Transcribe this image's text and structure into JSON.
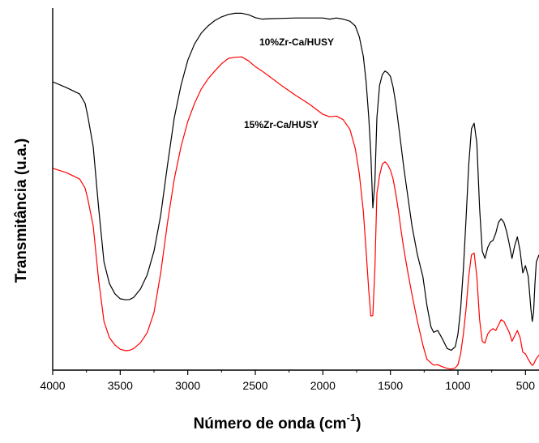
{
  "chart_data": {
    "type": "line",
    "xlabel": "Número de onda (cm",
    "xlabel_sup": "-1",
    "xlabel_close": ")",
    "ylabel": "Transmitância (u.a.)",
    "x_reversed": true,
    "xlim": [
      4000,
      400
    ],
    "ylim": [
      0,
      100
    ],
    "x_ticks": [
      4000,
      3500,
      3000,
      2500,
      2000,
      1500,
      1000,
      500
    ],
    "x_tick_labels": [
      "4000",
      "3500",
      "3000",
      "2500",
      "2000",
      "1500",
      "1000",
      "500"
    ],
    "y_ticks_shown": false,
    "grid": false,
    "series": [
      {
        "name": "10%Zr-Ca/HUSY",
        "color": "#000000",
        "x": [
          4000,
          3900,
          3800,
          3760,
          3740,
          3700,
          3660,
          3620,
          3580,
          3540,
          3500,
          3460,
          3430,
          3400,
          3350,
          3300,
          3250,
          3200,
          3150,
          3100,
          3050,
          3000,
          2950,
          2900,
          2850,
          2800,
          2750,
          2700,
          2650,
          2600,
          2550,
          2500,
          2450,
          2400,
          2300,
          2200,
          2100,
          2000,
          1950,
          1900,
          1850,
          1800,
          1760,
          1730,
          1700,
          1680,
          1660,
          1645,
          1630,
          1615,
          1600,
          1580,
          1560,
          1540,
          1520,
          1500,
          1480,
          1460,
          1440,
          1420,
          1400,
          1370,
          1340,
          1300,
          1260,
          1230,
          1200,
          1180,
          1150,
          1120,
          1080,
          1050,
          1020,
          1000,
          980,
          960,
          940,
          920,
          900,
          880,
          860,
          840,
          820,
          800,
          780,
          760,
          740,
          720,
          700,
          680,
          660,
          640,
          620,
          600,
          580,
          560,
          540,
          520,
          500,
          480,
          460,
          450,
          440,
          430,
          420,
          400
        ],
        "y": [
          80.0,
          78.4,
          76.6,
          74.0,
          70.5,
          62.0,
          45.0,
          30.0,
          24.0,
          21.2,
          19.8,
          19.5,
          19.6,
          20.2,
          22.5,
          26.5,
          33.0,
          43.0,
          57.0,
          70.0,
          79.0,
          86.0,
          90.5,
          93.5,
          95.5,
          97.0,
          98.0,
          98.7,
          99.0,
          99.0,
          98.6,
          97.8,
          97.4,
          97.5,
          97.6,
          97.7,
          97.7,
          97.7,
          97.4,
          97.7,
          97.4,
          96.8,
          95.5,
          92.5,
          87.0,
          80.0,
          70.0,
          60.0,
          45.0,
          52.0,
          70.0,
          79.0,
          82.0,
          83.0,
          82.5,
          81.5,
          78.5,
          74.0,
          68.0,
          62.0,
          56.0,
          48.0,
          40.0,
          32.0,
          26.0,
          18.0,
          12.0,
          10.5,
          11.0,
          9.0,
          6.0,
          5.5,
          6.5,
          10.0,
          17.0,
          28.0,
          42.0,
          57.0,
          67.0,
          68.5,
          63.0,
          45.0,
          33.0,
          31.0,
          34.0,
          35.5,
          36.0,
          38.0,
          41.0,
          42.0,
          41.0,
          38.5,
          35.0,
          31.0,
          34.5,
          37.0,
          33.0,
          27.0,
          29.0,
          26.0,
          17.0,
          13.5,
          16.0,
          24.0,
          30.0,
          32.0
        ]
      },
      {
        "name": "15%Zr-Ca/HUSY",
        "color": "#ff0000",
        "x": [
          4000,
          3900,
          3800,
          3760,
          3740,
          3700,
          3660,
          3620,
          3580,
          3540,
          3500,
          3460,
          3430,
          3400,
          3350,
          3300,
          3250,
          3200,
          3150,
          3100,
          3050,
          3000,
          2950,
          2900,
          2850,
          2800,
          2750,
          2700,
          2650,
          2600,
          2550,
          2500,
          2450,
          2400,
          2300,
          2200,
          2100,
          2000,
          1950,
          1900,
          1850,
          1800,
          1760,
          1730,
          1700,
          1680,
          1660,
          1645,
          1630,
          1615,
          1600,
          1580,
          1560,
          1540,
          1520,
          1500,
          1480,
          1460,
          1440,
          1420,
          1400,
          1370,
          1340,
          1300,
          1260,
          1230,
          1200,
          1180,
          1150,
          1120,
          1080,
          1050,
          1020,
          1000,
          980,
          960,
          940,
          920,
          900,
          880,
          860,
          840,
          820,
          800,
          780,
          760,
          740,
          720,
          700,
          680,
          660,
          640,
          620,
          600,
          580,
          560,
          540,
          520,
          500,
          480,
          460,
          450,
          440,
          430,
          420,
          400
        ],
        "y": [
          56.0,
          54.8,
          53.0,
          50.5,
          47.5,
          40.0,
          25.0,
          13.5,
          9.0,
          7.0,
          5.8,
          5.4,
          5.5,
          6.0,
          7.6,
          10.4,
          16.0,
          27.0,
          41.0,
          53.0,
          62.0,
          69.0,
          74.0,
          78.0,
          80.8,
          83.0,
          85.0,
          86.5,
          86.8,
          86.9,
          85.8,
          84.2,
          83.0,
          81.6,
          78.8,
          76.2,
          73.8,
          71.0,
          70.3,
          70.5,
          69.5,
          66.8,
          61.5,
          54.5,
          44.0,
          33.0,
          22.0,
          15.0,
          15.2,
          28.0,
          49.0,
          54.0,
          57.2,
          57.8,
          57.0,
          55.5,
          53.0,
          49.0,
          44.0,
          38.5,
          33.5,
          27.0,
          21.0,
          13.5,
          7.0,
          3.0,
          2.0,
          1.4,
          1.5,
          1.0,
          0.5,
          0.3,
          0.6,
          1.5,
          4.5,
          10.0,
          17.0,
          26.0,
          32.0,
          32.5,
          26.0,
          14.0,
          8.0,
          7.5,
          10.0,
          11.0,
          11.5,
          11.0,
          12.5,
          14.0,
          13.5,
          12.0,
          10.5,
          8.0,
          9.5,
          11.0,
          9.0,
          5.0,
          4.5,
          3.0,
          1.8,
          1.3,
          1.6,
          2.4,
          3.2,
          4.2
        ]
      }
    ]
  }
}
